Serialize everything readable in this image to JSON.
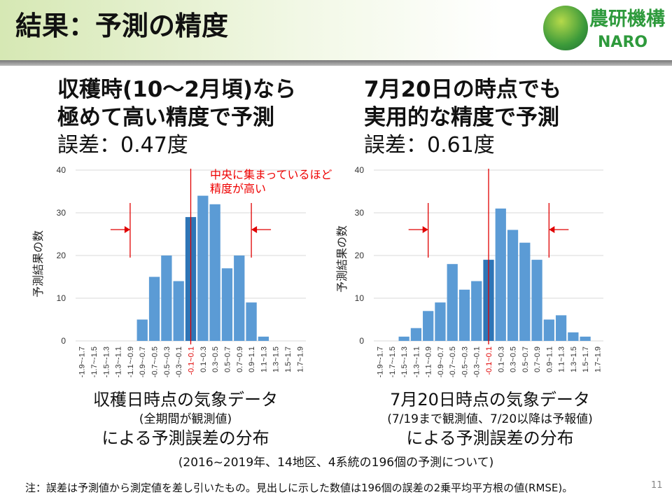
{
  "header": {
    "title": "結果：予測の精度",
    "logo_jp": "農研機構",
    "logo_en": "NARO"
  },
  "left": {
    "heading1": "収穫時(10～2月頃)なら",
    "heading2": "極めて高い精度で予測",
    "error": "誤差：0.47度",
    "caption1": "収穫日時点の気象データ",
    "caption2": "(全期間が観測値)",
    "caption3": "による予測誤差の分布"
  },
  "right": {
    "heading1": "7月20日の時点でも",
    "heading2": "実用的な精度で予測",
    "error": "誤差：0.61度",
    "caption1": "7月20日時点の気象データ",
    "caption2": "(7/19まで観測値、7/20以降は予報値)",
    "caption3": "による予測誤差の分布"
  },
  "annotation": {
    "line1": "中央に集まっているほど",
    "line2": "精度が高い"
  },
  "footer": {
    "scope": "(2016~2019年、14地区、4系統の196個の予測について)",
    "note": "注：誤差は予測値から測定値を差し引いたもの。見出しに示した数値は196個の誤差の2乗平均平方根の値(RMSE)。",
    "page": "11"
  },
  "colors": {
    "bar": "#5b9bd5",
    "highlight": "#2e75b6",
    "marker": "#e00000"
  },
  "chart_data": [
    {
      "type": "bar",
      "ylabel": "予測結果の数",
      "ylim": [
        0,
        40
      ],
      "yticks": [
        0,
        10,
        20,
        30,
        40
      ],
      "grid": true,
      "categories": [
        "-1.9~-1.7",
        "-1.7~-1.5",
        "-1.5~-1.3",
        "-1.3~-1.1",
        "-1.1~-0.9",
        "-0.9~-0.7",
        "-0.7~-0.5",
        "-0.5~-0.3",
        "-0.3~-0.1",
        "-0.1~0.1",
        "0.1~0.3",
        "0.3~0.5",
        "0.5~0.7",
        "0.7~0.9",
        "0.9~1.1",
        "1.1~1.3",
        "1.3~1.5",
        "1.5~1.7",
        "1.7~1.9"
      ],
      "values": [
        0,
        0,
        0,
        0,
        0,
        5,
        15,
        20,
        14,
        29,
        34,
        32,
        17,
        20,
        9,
        1,
        0,
        0,
        0
      ],
      "highlight_index": 9,
      "range_markers": [
        -1.0,
        1.0
      ]
    },
    {
      "type": "bar",
      "ylabel": "予測結果の数",
      "ylim": [
        0,
        40
      ],
      "yticks": [
        0,
        10,
        20,
        30,
        40
      ],
      "grid": true,
      "categories": [
        "-1.9~-1.7",
        "-1.7~-1.5",
        "-1.5~-1.3",
        "-1.3~-1.1",
        "-1.1~-0.9",
        "-0.9~-0.7",
        "-0.7~-0.5",
        "-0.5~-0.3",
        "-0.3~-0.1",
        "-0.1~0.1",
        "0.1~0.3",
        "0.3~0.5",
        "0.5~0.7",
        "0.7~0.9",
        "0.9~1.1",
        "1.1~1.3",
        "1.3~1.5",
        "1.5~1.7",
        "1.7~1.9"
      ],
      "values": [
        0,
        0,
        1,
        3,
        7,
        9,
        18,
        12,
        14,
        19,
        31,
        26,
        23,
        19,
        5,
        6,
        2,
        1,
        0
      ],
      "highlight_index": 9,
      "range_markers": [
        -1.0,
        1.0
      ]
    }
  ]
}
